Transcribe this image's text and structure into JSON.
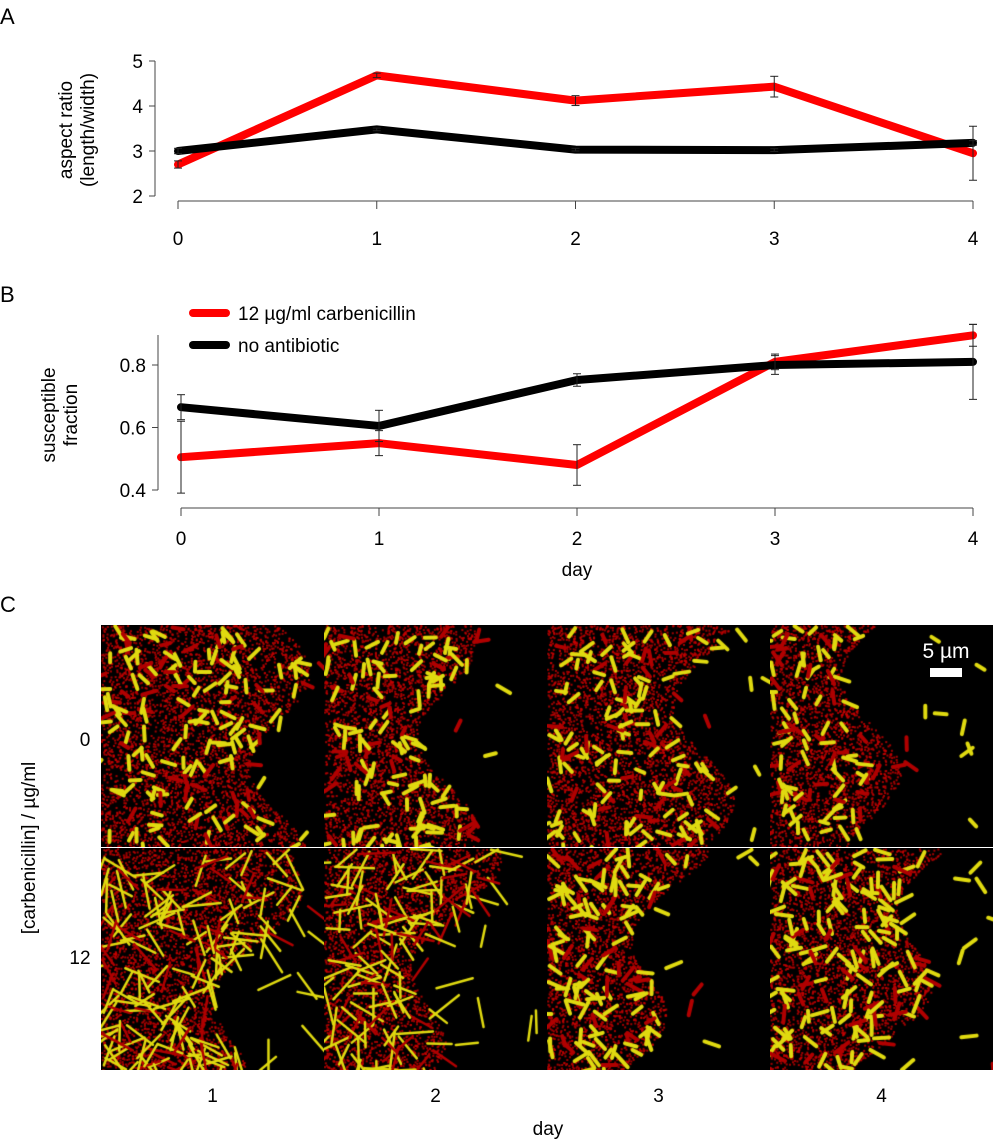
{
  "panels": {
    "a": "A",
    "b": "B",
    "c": "C"
  },
  "chart_data": [
    {
      "type": "line",
      "panel": "A",
      "x": [
        0,
        1,
        2,
        3,
        4
      ],
      "xticks": [
        "0",
        "1",
        "2",
        "3",
        "4"
      ],
      "ylabel_lines": [
        "aspect ratio",
        "(length/width)"
      ],
      "xlabel": "",
      "ylim": [
        2,
        5
      ],
      "yticks": [
        "2",
        "3",
        "4",
        "5"
      ],
      "ytick_values": [
        2,
        3,
        4,
        5
      ],
      "series": [
        {
          "name": "12 µg/ml carbenicillin",
          "color": "#ff0000",
          "values": [
            2.7,
            4.68,
            4.12,
            4.43,
            2.95
          ],
          "errors": [
            0.08,
            0.05,
            0.11,
            0.23,
            0.6
          ]
        },
        {
          "name": "no antibiotic",
          "color": "#000000",
          "values": [
            3.0,
            3.48,
            3.03,
            3.02,
            3.18
          ],
          "errors": [
            0.06,
            0.03,
            0.03,
            0.03,
            0.05
          ]
        }
      ]
    },
    {
      "type": "line",
      "panel": "B",
      "x": [
        0,
        1,
        2,
        3,
        4
      ],
      "xticks": [
        "0",
        "1",
        "2",
        "3",
        "4"
      ],
      "ylabel_lines": [
        "susceptible",
        "fraction"
      ],
      "xlabel": "day",
      "ylim": [
        0.4,
        0.9
      ],
      "yticks": [
        "0.4",
        "0.6",
        "0.8"
      ],
      "ytick_values": [
        0.4,
        0.6,
        0.8
      ],
      "legend_position": "top-left",
      "series": [
        {
          "name": "12 µg/ml carbenicillin",
          "color": "#ff0000",
          "values": [
            0.505,
            0.55,
            0.48,
            0.81,
            0.895
          ],
          "errors": [
            0.115,
            0.04,
            0.065,
            0.025,
            0.035
          ]
        },
        {
          "name": "no antibiotic",
          "color": "#000000",
          "values": [
            0.665,
            0.605,
            0.752,
            0.8,
            0.81
          ],
          "errors": [
            0.04,
            0.05,
            0.02,
            0.03,
            0.12
          ]
        }
      ]
    }
  ],
  "micrographs": {
    "ylabel": "[carbenicillin] / µg/ml",
    "rows": [
      "0",
      "12"
    ],
    "columns": [
      "1",
      "2",
      "3",
      "4"
    ],
    "xlabel": "day",
    "scale_bar": "5 µm",
    "colors": {
      "susceptible": "#e6e000",
      "resistant": "#d40000",
      "background": "#000000"
    }
  }
}
